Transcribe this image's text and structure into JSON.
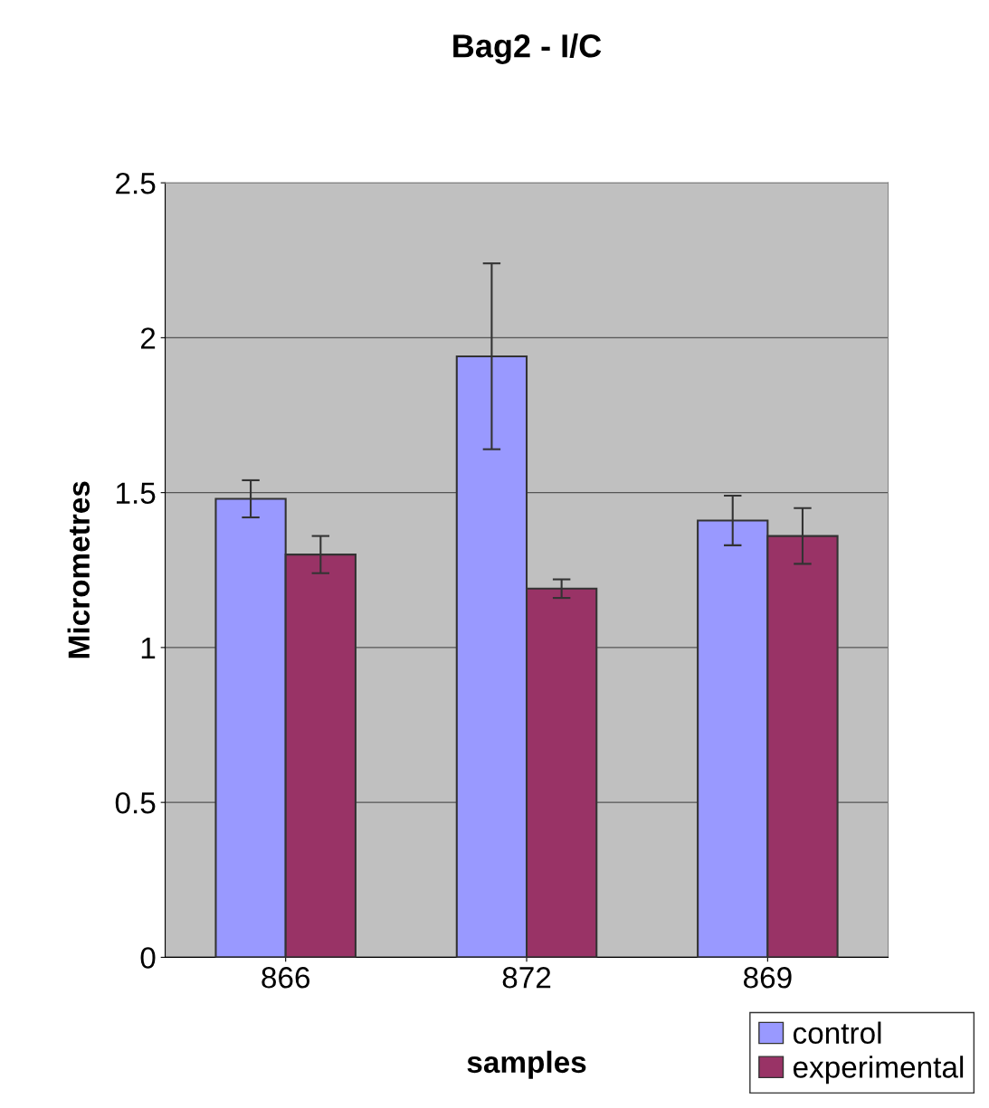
{
  "chart_data": {
    "type": "bar",
    "title": "Bag2 - I/C",
    "xlabel": "samples",
    "ylabel": "Micrometres",
    "categories": [
      "866",
      "872",
      "869"
    ],
    "series": [
      {
        "name": "control",
        "color": "#9999ff",
        "values": [
          1.48,
          1.94,
          1.41
        ],
        "errors": [
          0.06,
          0.3,
          0.08
        ]
      },
      {
        "name": "experimental",
        "color": "#993366",
        "values": [
          1.3,
          1.19,
          1.36
        ],
        "errors": [
          0.06,
          0.03,
          0.09
        ]
      }
    ],
    "ylim": [
      0,
      2.5
    ],
    "yticks": [
      0,
      0.5,
      1,
      1.5,
      2,
      2.5
    ],
    "grid": "y",
    "legend": "bottom right"
  }
}
